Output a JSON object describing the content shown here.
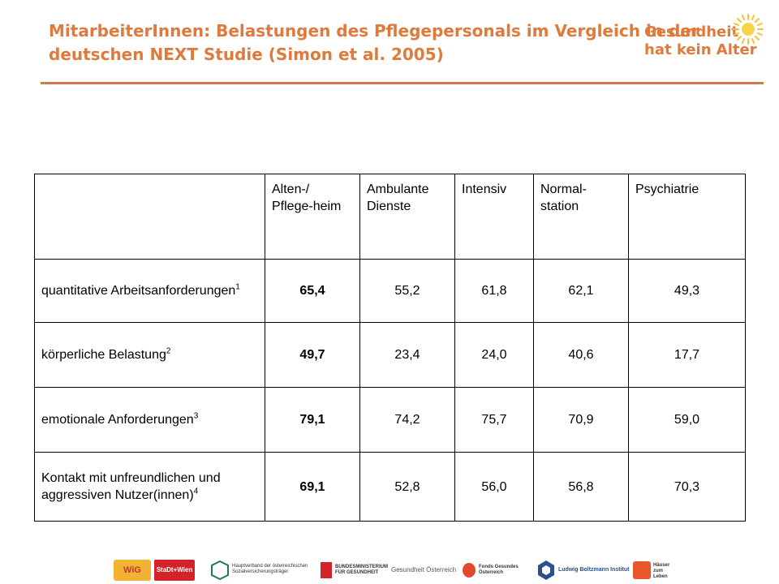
{
  "title": {
    "line1": "MitarbeiterInnen: Belastungen des Pflegepersonals im Vergleich in der",
    "line2": "deutschen NEXT Studie  (Simon et al. 2005)"
  },
  "logo": {
    "line1": "Gesundheit",
    "line2": "hat kein Alter"
  },
  "table": {
    "headers": [
      "",
      "Alten-/ Pflege-heim",
      "Ambulante Dienste",
      "Intensiv",
      "Normal-station",
      "Psychiatrie"
    ],
    "rows": [
      {
        "label": "quantitative Arbeitsanforderungen",
        "sup": "1",
        "values": [
          "65,4",
          "55,2",
          "61,8",
          "62,1",
          "49,3"
        ]
      },
      {
        "label": "körperliche Belastung",
        "sup": "2",
        "values": [
          "49,7",
          "23,4",
          "24,0",
          "40,6",
          "17,7"
        ]
      },
      {
        "label": "emotionale Anforderungen",
        "sup": "3",
        "values": [
          "79,1",
          "74,2",
          "75,7",
          "70,9",
          "59,0"
        ]
      },
      {
        "label": "Kontakt mit unfreundlichen und aggressiven Nutzer(innen)",
        "sup": "4",
        "values": [
          "69,1",
          "52,8",
          "56,0",
          "56,8",
          "70,3"
        ]
      }
    ]
  },
  "footer": {
    "logos": [
      {
        "name": "WiG",
        "text": "WiG"
      },
      {
        "name": "Stadt Wien",
        "text": "StaDt+Wien"
      },
      {
        "name": "Hauptverband",
        "text": "Hauptverband der österreichischen Sozialversicherungsträger"
      },
      {
        "name": "Bundesministerium",
        "text": "BUNDESMINISTERIUM FÜR GESUNDHEIT"
      },
      {
        "name": "Gesundheit Österreich",
        "text": "Gesundheit Österreich"
      },
      {
        "name": "Fonds Gesundes Österreich",
        "text": "Fonds Gesundes Österreich"
      },
      {
        "name": "Ludwig Boltzmann Institut",
        "text": "Ludwig Boltzmann Institut"
      },
      {
        "name": "Häuser zum Leben",
        "text": "Häuser zum Leben"
      }
    ]
  }
}
